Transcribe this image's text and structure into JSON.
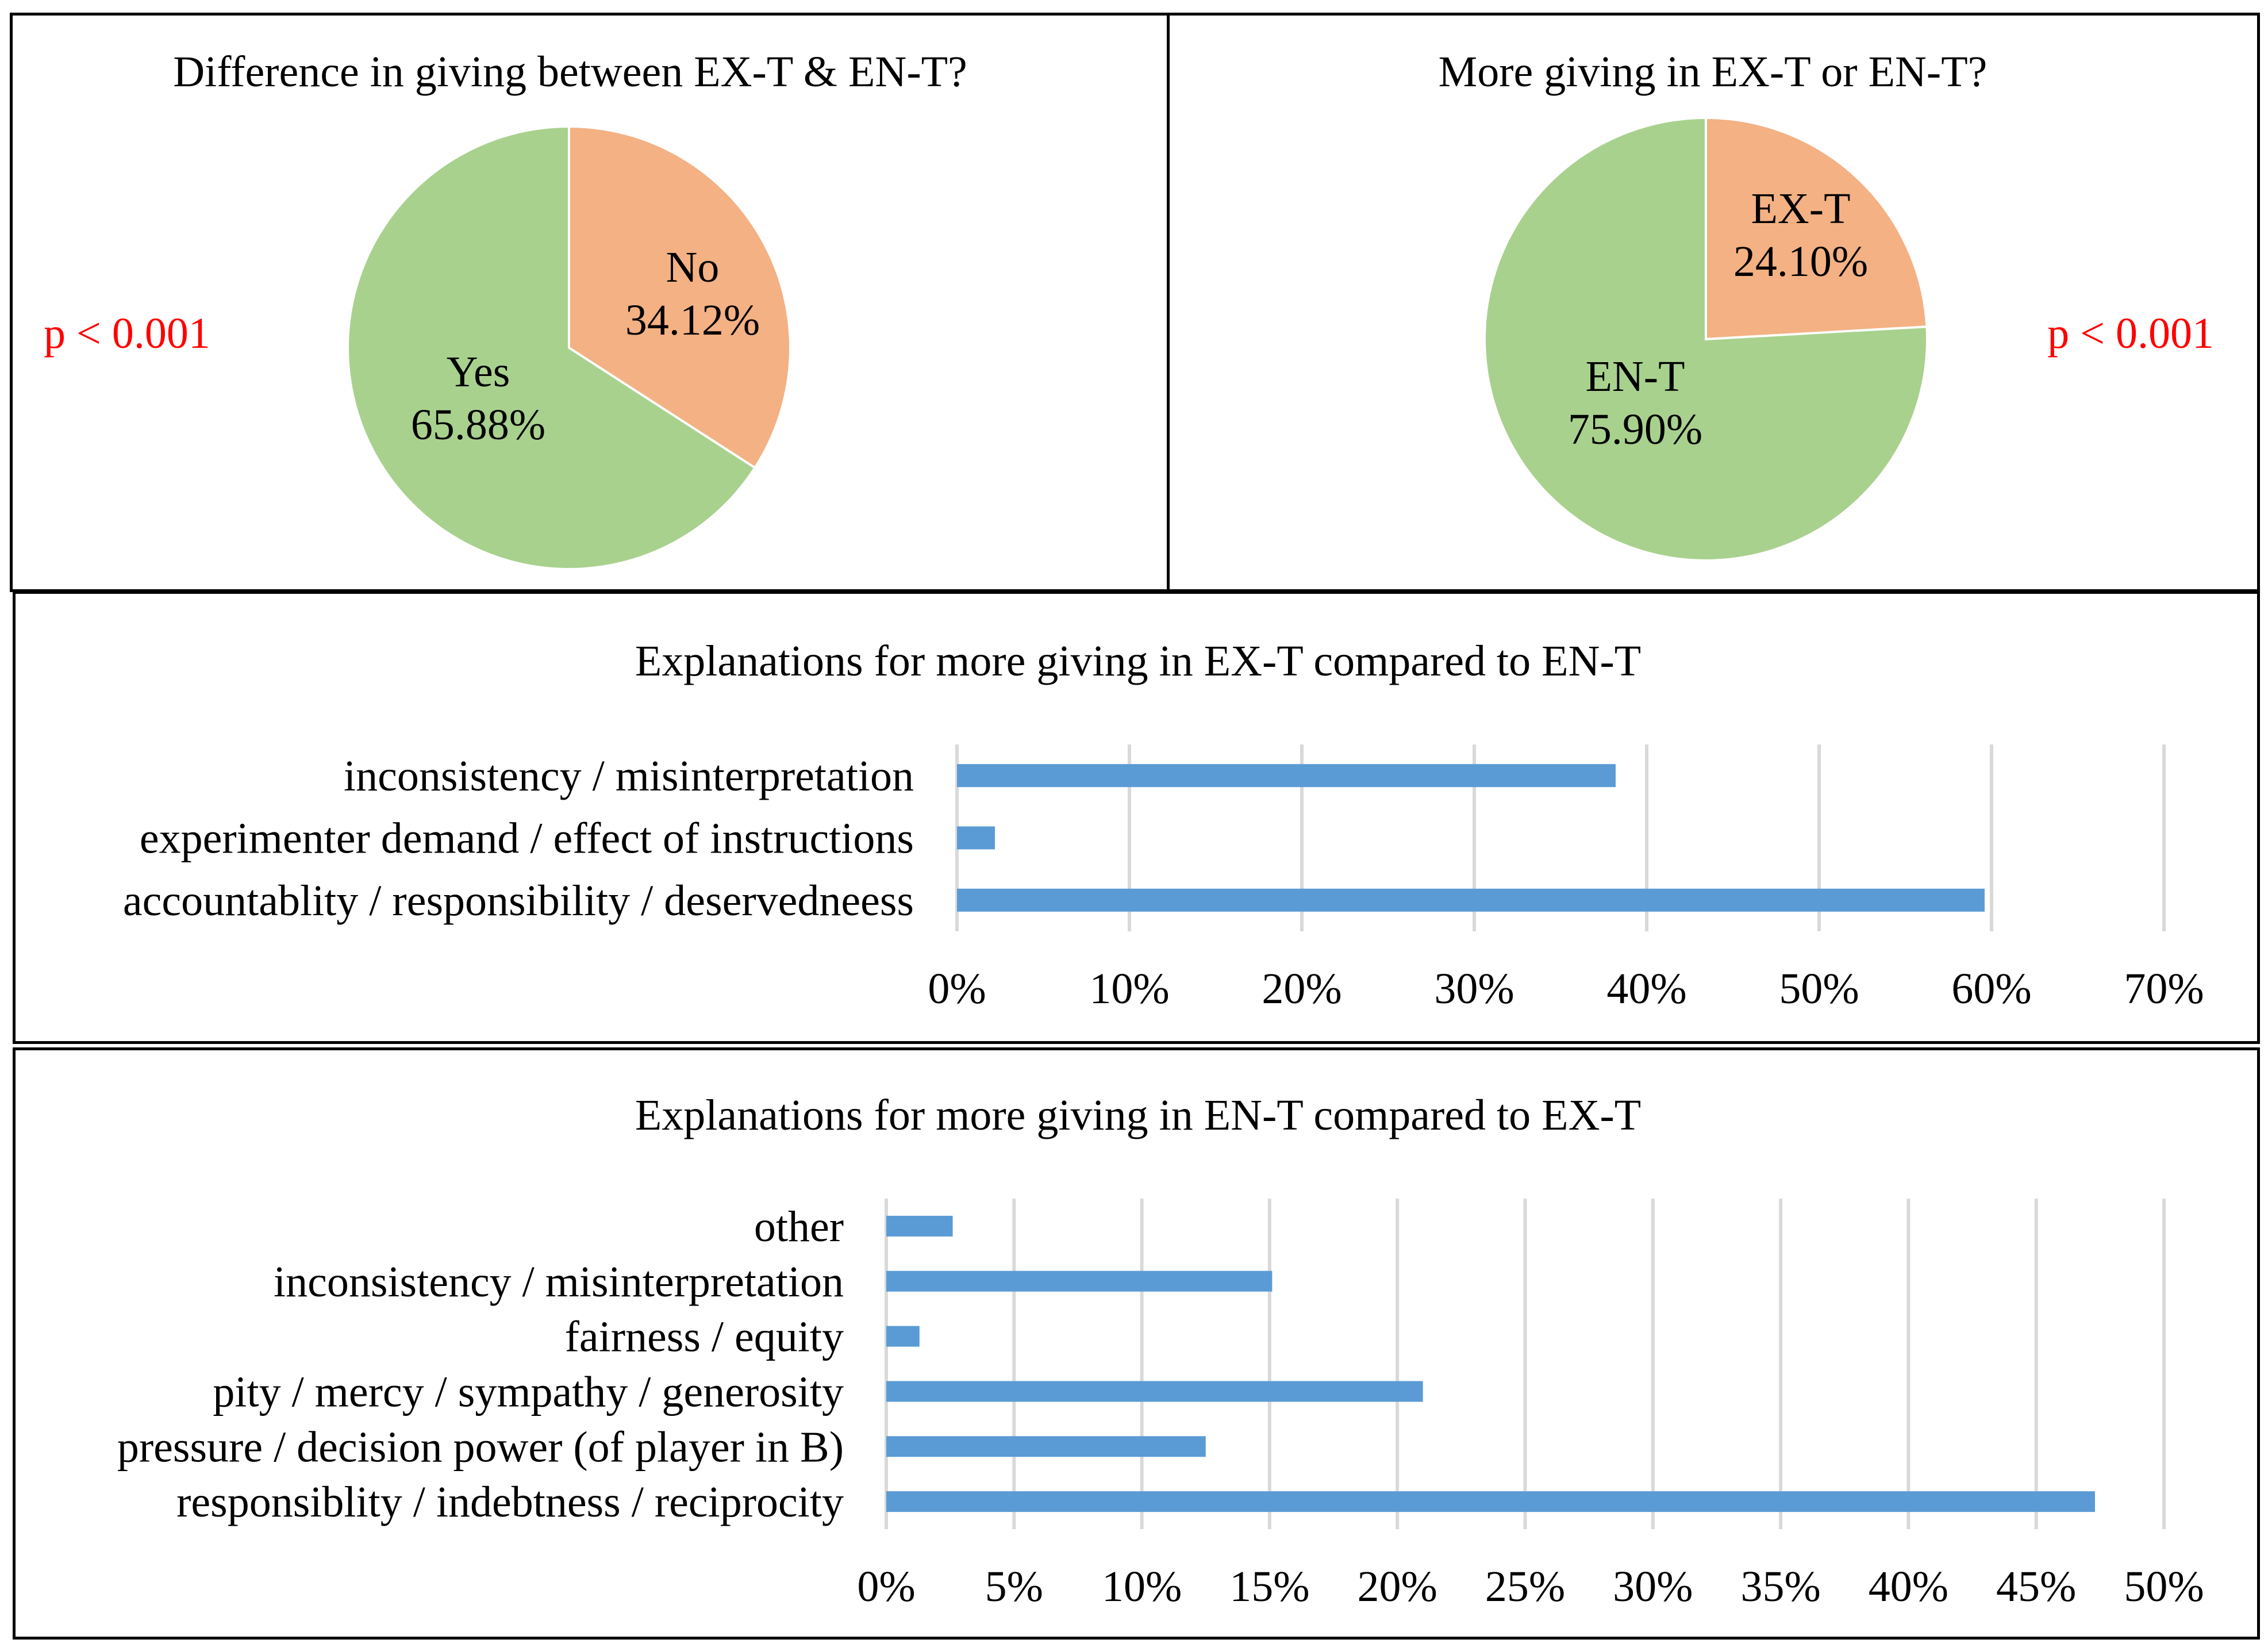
{
  "chart_data": [
    {
      "type": "pie",
      "title": "Difference in giving between EX-T & EN-T?",
      "annotation": "p < 0.001",
      "slices": [
        {
          "label": "No",
          "value": 34.12,
          "value_text": "34.12%",
          "color": "#F4B183"
        },
        {
          "label": "Yes",
          "value": 65.88,
          "value_text": "65.88%",
          "color": "#A9D18E"
        }
      ]
    },
    {
      "type": "pie",
      "title": "More giving in EX-T or EN-T?",
      "annotation": "p < 0.001",
      "slices": [
        {
          "label": "EX-T",
          "value": 24.1,
          "value_text": "24.10%",
          "color": "#F4B183"
        },
        {
          "label": "EN-T",
          "value": 75.9,
          "value_text": "75.90%",
          "color": "#A9D18E"
        }
      ]
    },
    {
      "type": "bar",
      "orientation": "horizontal",
      "title": "Explanations for more giving in EX-T compared to EN-T",
      "categories": [
        "inconsistency / misinterpretation",
        "experimenter demand / effect of instructions",
        "accountablity / responsibility / deservedneess"
      ],
      "values": [
        38.2,
        2.2,
        59.6
      ],
      "xlim": [
        0,
        70
      ],
      "ticks": [
        0,
        10,
        20,
        30,
        40,
        50,
        60,
        70
      ],
      "tick_labels": [
        "0%",
        "10%",
        "20%",
        "30%",
        "40%",
        "50%",
        "60%",
        "70%"
      ],
      "color": "#5B9BD5",
      "grid": true
    },
    {
      "type": "bar",
      "orientation": "horizontal",
      "title": "Explanations for more giving in EN-T compared to EX-T",
      "categories": [
        "other",
        "inconsistency / misinterpretation",
        "fairness / equity",
        "pity / mercy / sympathy / generosity",
        "pressure / decision power (of player in B)",
        "responsiblity / indebtness / reciprocity"
      ],
      "values": [
        2.6,
        15.1,
        1.3,
        21.0,
        12.5,
        47.3
      ],
      "xlim": [
        0,
        50
      ],
      "ticks": [
        0,
        5,
        10,
        15,
        20,
        25,
        30,
        35,
        40,
        45,
        50
      ],
      "tick_labels": [
        "0%",
        "5%",
        "10%",
        "15%",
        "20%",
        "25%",
        "30%",
        "35%",
        "40%",
        "45%",
        "50%"
      ],
      "color": "#5B9BD5",
      "grid": true
    }
  ]
}
